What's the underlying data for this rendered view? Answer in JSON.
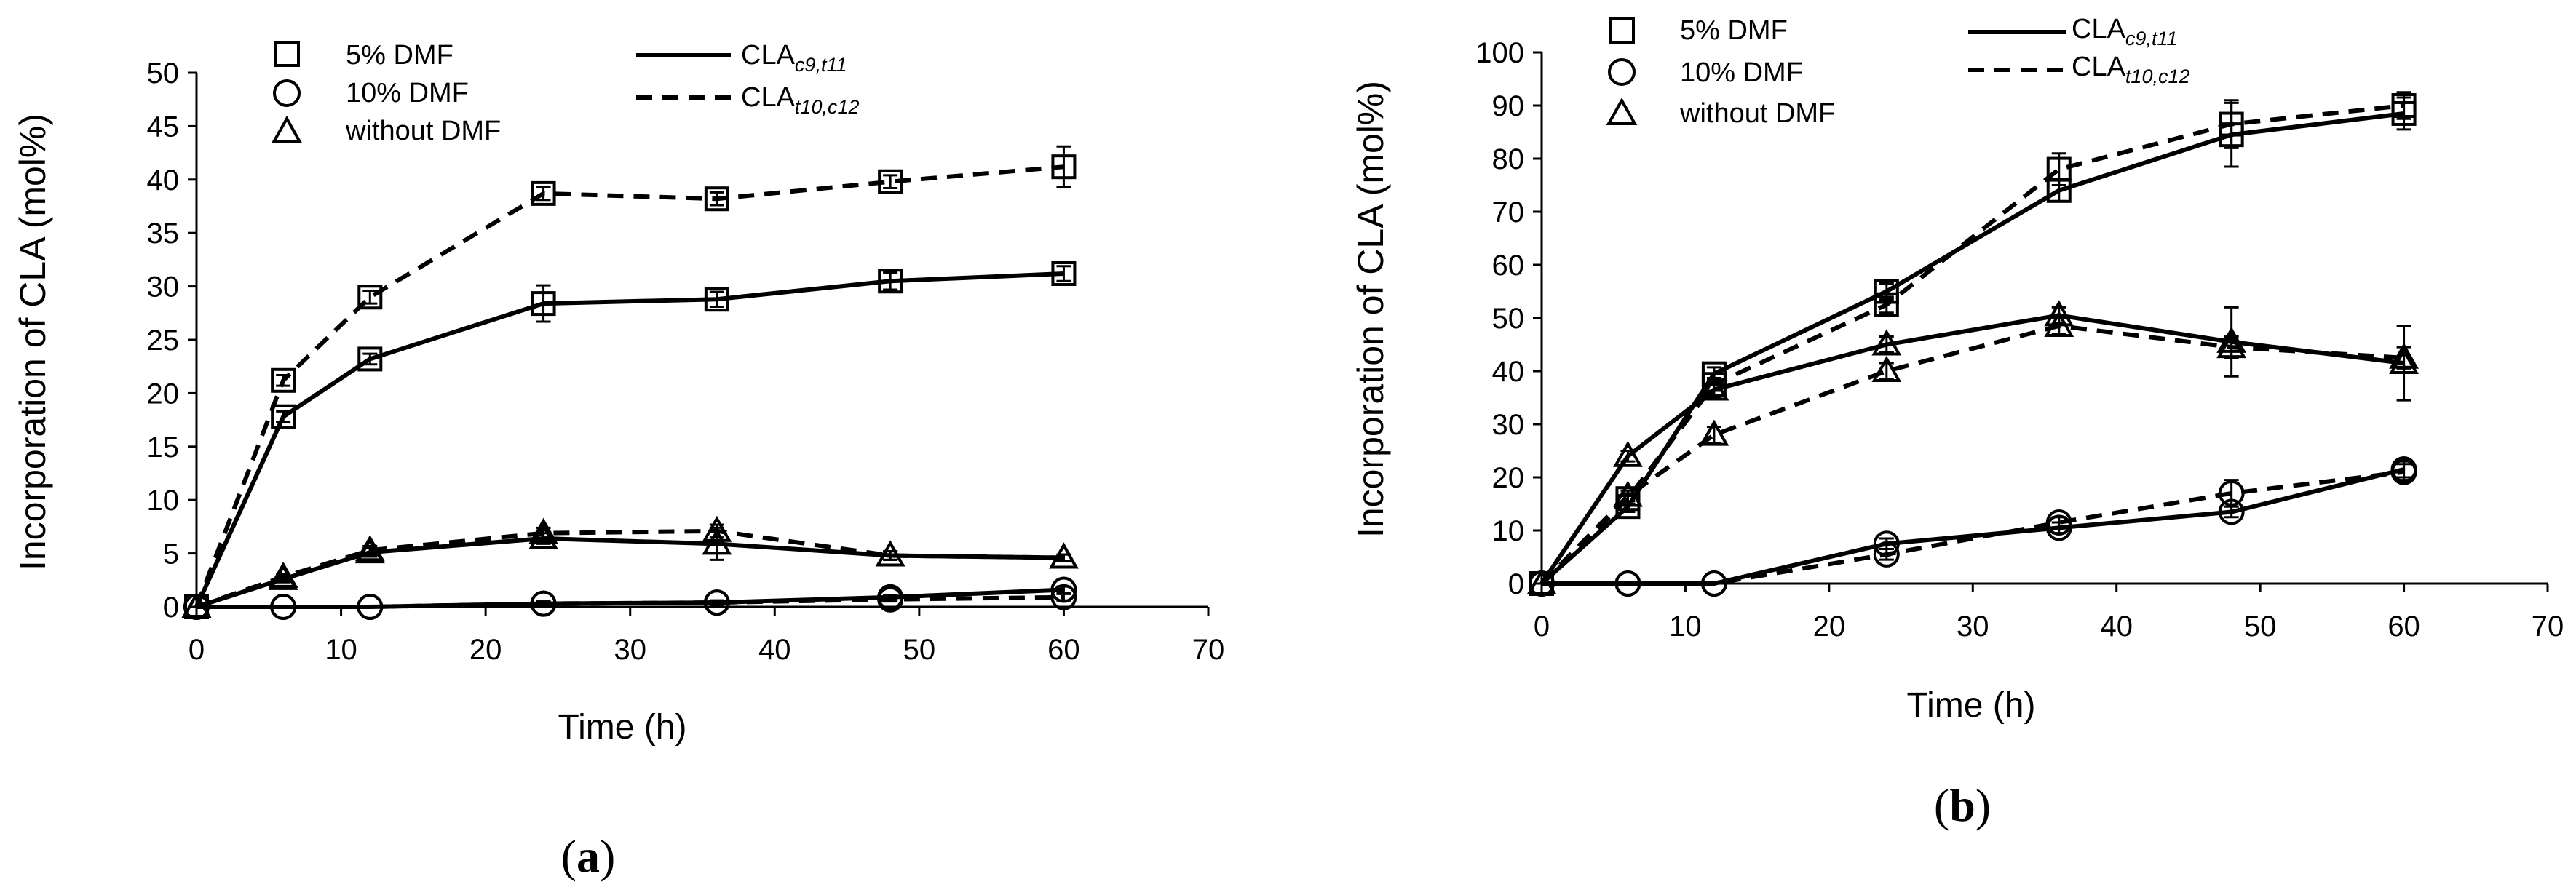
{
  "panels": {
    "a": {
      "label": "a"
    },
    "b": {
      "label": "b"
    }
  },
  "legend": {
    "markers": [
      {
        "name": "5% DMF",
        "marker": "square"
      },
      {
        "name": "10% DMF",
        "marker": "circle"
      },
      {
        "name": "without DMF",
        "marker": "triangle"
      }
    ],
    "lines": [
      {
        "base": "CLA",
        "sub": "c9,t11",
        "style": "solid"
      },
      {
        "base": "CLA",
        "sub": "t10,c12",
        "style": "dashed"
      }
    ]
  },
  "chart_data": [
    {
      "id": "a",
      "type": "line",
      "xlabel": "Time (h)",
      "ylabel": "Incorporation of CLA (mol%)",
      "xlim": [
        0,
        70
      ],
      "ylim": [
        0,
        50
      ],
      "xticks": [
        0,
        10,
        20,
        30,
        40,
        50,
        60,
        70
      ],
      "yticks": [
        0,
        5,
        10,
        15,
        20,
        25,
        30,
        35,
        40,
        45,
        50
      ],
      "grid": false,
      "x": [
        0,
        6,
        12,
        24,
        36,
        48,
        60
      ],
      "series": [
        {
          "name": "5% DMF CLAc9,t11",
          "marker": "square",
          "style": "solid",
          "values": [
            0,
            17.8,
            23.2,
            28.4,
            28.8,
            30.5,
            31.2
          ],
          "errors": [
            0,
            0.5,
            0.5,
            1.7,
            0.7,
            0.8,
            0.7
          ]
        },
        {
          "name": "5% DMF CLAt10,c12",
          "marker": "square",
          "style": "dashed",
          "values": [
            0,
            21.2,
            29.0,
            38.7,
            38.2,
            39.8,
            41.2
          ],
          "errors": [
            0,
            0.5,
            0.6,
            0.6,
            0.6,
            0.6,
            1.9
          ]
        },
        {
          "name": "10% DMF CLAc9,t11",
          "marker": "circle",
          "style": "solid",
          "values": [
            0,
            0,
            0,
            0.3,
            0.4,
            0.9,
            1.6
          ],
          "errors": [
            0,
            0,
            0,
            0.2,
            0.2,
            0.2,
            0.3
          ]
        },
        {
          "name": "10% DMF CLAt10,c12",
          "marker": "circle",
          "style": "dashed",
          "values": [
            0,
            0,
            0,
            0.3,
            0.4,
            0.7,
            0.9
          ],
          "errors": [
            0,
            0,
            0,
            0.2,
            0.2,
            0.2,
            0.3
          ]
        },
        {
          "name": "without DMF CLAc9,t11",
          "marker": "triangle",
          "style": "solid",
          "values": [
            0,
            2.6,
            5.1,
            6.4,
            5.9,
            4.8,
            4.6
          ],
          "errors": [
            0,
            0.3,
            0.4,
            0.5,
            1.5,
            0.4,
            0.3
          ]
        },
        {
          "name": "without DMF CLAt10,c12",
          "marker": "triangle",
          "style": "dashed",
          "values": [
            0,
            2.8,
            5.3,
            6.9,
            7.1,
            4.8,
            4.6
          ],
          "errors": [
            0,
            0.3,
            0.4,
            0.5,
            0.6,
            0.4,
            0.3
          ]
        }
      ]
    },
    {
      "id": "b",
      "type": "line",
      "xlabel": "Time (h)",
      "ylabel": "Incorporation of CLA (mol%)",
      "xlim": [
        0,
        70
      ],
      "ylim": [
        0,
        100
      ],
      "xticks": [
        0,
        10,
        20,
        30,
        40,
        50,
        60,
        70
      ],
      "yticks": [
        0,
        10,
        20,
        30,
        40,
        50,
        60,
        70,
        80,
        90,
        100
      ],
      "grid": false,
      "x": [
        0,
        6,
        12,
        24,
        36,
        48,
        60
      ],
      "series": [
        {
          "name": "5% DMF CLAc9,t11",
          "marker": "square",
          "style": "solid",
          "values": [
            0,
            14.5,
            39.5,
            55,
            74,
            84.5,
            88.5
          ],
          "errors": [
            0,
            1,
            1.2,
            1.5,
            2,
            6,
            3
          ]
        },
        {
          "name": "5% DMF CLAt10,c12",
          "marker": "square",
          "style": "dashed",
          "values": [
            0,
            16,
            37.5,
            52.5,
            78,
            86.5,
            90
          ],
          "errors": [
            0,
            1,
            1.2,
            1.5,
            3,
            4.5,
            2.5
          ]
        },
        {
          "name": "10% DMF CLAc9,t11",
          "marker": "circle",
          "style": "solid",
          "values": [
            0,
            0,
            0,
            7.5,
            10.5,
            13.5,
            21.5
          ],
          "errors": [
            0,
            0,
            0,
            1,
            1,
            1,
            1.5
          ]
        },
        {
          "name": "10% DMF CLAt10,c12",
          "marker": "circle",
          "style": "dashed",
          "values": [
            0,
            0,
            0,
            5.5,
            11.5,
            17,
            21
          ],
          "errors": [
            0,
            0,
            0,
            1,
            1,
            2.5,
            1.5
          ]
        },
        {
          "name": "without DMF CLAc9,t11",
          "marker": "triangle",
          "style": "solid",
          "values": [
            0,
            24,
            36.5,
            45,
            50.5,
            45.5,
            41.5
          ],
          "errors": [
            0,
            1,
            1.5,
            1.5,
            1.5,
            6.5,
            7
          ]
        },
        {
          "name": "without DMF CLAt10,c12",
          "marker": "triangle",
          "style": "dashed",
          "values": [
            0,
            16.5,
            28,
            40,
            48.5,
            44.5,
            42.5
          ],
          "errors": [
            0,
            1,
            1.5,
            1.5,
            1.5,
            2,
            2
          ]
        }
      ]
    }
  ]
}
